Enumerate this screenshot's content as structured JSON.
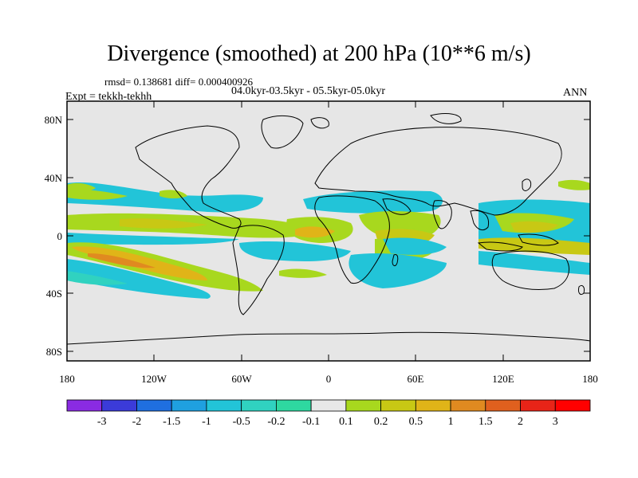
{
  "plot": {
    "title": "Divergence (smoothed) at 200 hPa (10**6 m/s)",
    "stats": "rmsd= 0.138681 diff= 0.000400926",
    "period": "04.0kyr-03.5kyr - 05.5kyr-05.0kyr",
    "expt": "Expt = tekkh-tekhh",
    "season": "ANN",
    "lat_ticks": [
      "80N",
      "40N",
      "0",
      "40S",
      "80S"
    ],
    "lon_ticks": [
      "180",
      "120W",
      "60W",
      "0",
      "60E",
      "120E",
      "180"
    ]
  },
  "colorbar": {
    "labels": [
      "-3",
      "-2",
      "-1.5",
      "-1",
      "-0.5",
      "-0.2",
      "-0.1",
      "0.1",
      "0.2",
      "0.5",
      "1",
      "1.5",
      "2",
      "3"
    ],
    "colors": [
      "#8a2be2",
      "#3b3bd9",
      "#1f6fe0",
      "#1fa0e0",
      "#22c4d8",
      "#30d2c0",
      "#2ed8a0",
      "#e8e8e8",
      "#a8d81e",
      "#c8c814",
      "#e0b418",
      "#e08a20",
      "#e0601e",
      "#e82418",
      "#ff0000"
    ]
  },
  "map_colors": {
    "neutral": "#e6e6e6",
    "neg_weak": "#30d2c0",
    "neg_mid": "#22c4d8",
    "pos_weak": "#a8d81e",
    "pos_mid": "#c8c814",
    "pos_strong": "#e0b418",
    "pos_max": "#e08a20"
  }
}
